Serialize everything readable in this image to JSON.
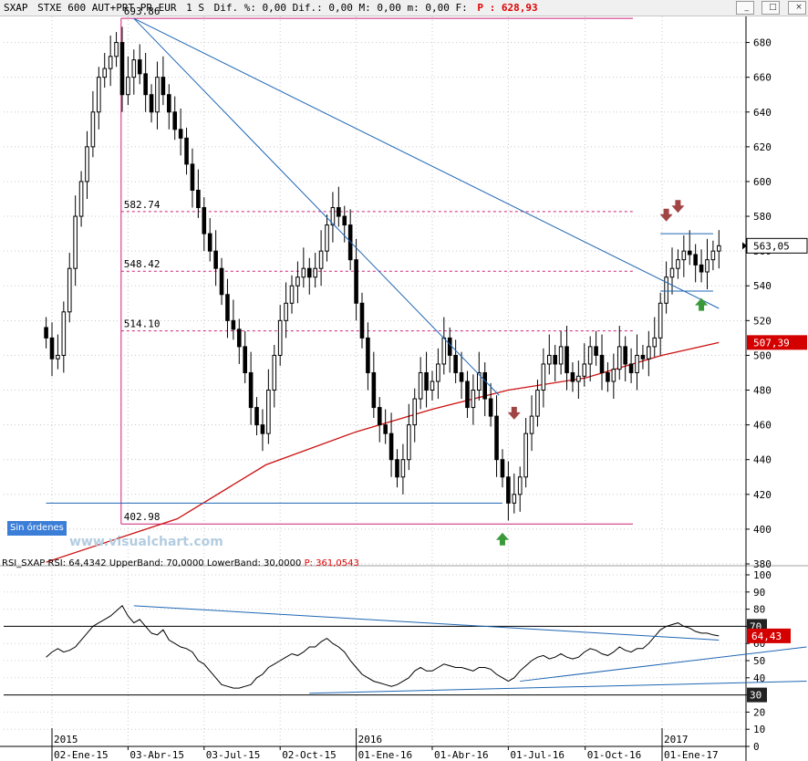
{
  "header": {
    "symbol": "SXAP",
    "name": "STXE 600 AUT+PRT PR.EUR",
    "period": "1 S",
    "stats": "Dif. %: 0,00 Dif.: 0,00 M: 0,00 m: 0,00 F:",
    "price": "P : 628,93"
  },
  "window_buttons": [
    "_",
    "□",
    "×"
  ],
  "sin_ordenes": "Sin órdenes",
  "watermark": "www.visualchart.com",
  "rsi_header": {
    "text": "RSI_SXAP  RSI: 64,4342  UpperBand: 70,0000  LowerBand: 30,0000",
    "p": "P: 361,0543"
  },
  "colors": {
    "candle": "#000000",
    "trendline": "#1f66b4",
    "fib": "#cc2277",
    "ma": "#cc1111",
    "down_arrow": "#a04444",
    "up_arrow": "#3a9a3a"
  },
  "chart_data": [
    {
      "type": "candlestick",
      "panel": "price",
      "period": "weekly",
      "y_axis_side": "right",
      "ylim": [
        380,
        695
      ],
      "yticks": [
        380,
        400,
        420,
        440,
        460,
        480,
        500,
        520,
        540,
        560,
        580,
        600,
        620,
        640,
        660,
        680
      ],
      "last_price_label": "563,05",
      "ma_label": "507,39",
      "fib_levels": [
        {
          "label": "693.86",
          "value": 693.86
        },
        {
          "label": "582.74",
          "value": 582.74
        },
        {
          "label": "548.42",
          "value": 548.42
        },
        {
          "label": "514.10",
          "value": 514.1
        },
        {
          "label": "402.98",
          "value": 402.98
        }
      ],
      "anchor_points": [
        {
          "name": "peak",
          "date": "2015-04-10",
          "value": 693.86
        },
        {
          "name": "trough",
          "date": "2016-06-24",
          "value": 402.98
        }
      ],
      "trendlines": [
        {
          "from": {
            "date": "2015-04-10",
            "value": 693.86
          },
          "to": {
            "date": "2017-03-10",
            "value": 527
          }
        },
        {
          "from": {
            "date": "2015-04-10",
            "value": 693.86
          },
          "to": {
            "date": "2016-06-20",
            "value": 477
          }
        }
      ],
      "horizontal_lines": [
        {
          "value": 415,
          "from": "2014-12-26",
          "to": "2016-06-24"
        },
        {
          "value": 570,
          "from": "2016-12-30",
          "to": "2017-03-03"
        },
        {
          "value": 537,
          "from": "2016-12-30",
          "to": "2017-03-03"
        }
      ],
      "markers": [
        {
          "type": "up",
          "date": "2016-06-24",
          "value": 398
        },
        {
          "type": "down",
          "date": "2016-07-08",
          "value": 463
        },
        {
          "type": "down",
          "date": "2017-01-06",
          "value": 577
        },
        {
          "type": "down",
          "date": "2017-01-20",
          "value": 582
        },
        {
          "type": "up",
          "date": "2017-02-17",
          "value": 533
        }
      ],
      "ma_path": [
        {
          "date": "2014-12-26",
          "value": 381
        },
        {
          "date": "2015-06-01",
          "value": 406
        },
        {
          "date": "2015-09-15",
          "value": 437
        },
        {
          "date": "2016-01-01",
          "value": 456
        },
        {
          "date": "2016-04-01",
          "value": 469
        },
        {
          "date": "2016-07-01",
          "value": 480
        },
        {
          "date": "2016-10-01",
          "value": 487
        },
        {
          "date": "2017-01-01",
          "value": 500
        },
        {
          "date": "2017-03-10",
          "value": 507.39
        }
      ],
      "anchor_first": "2014-12-26",
      "closes": [
        510,
        498,
        500,
        525,
        550,
        580,
        600,
        620,
        640,
        660,
        665,
        672,
        680,
        650,
        660,
        670,
        662,
        650,
        640,
        660,
        650,
        640,
        630,
        625,
        610,
        595,
        585,
        570,
        560,
        550,
        535,
        520,
        515,
        505,
        490,
        470,
        460,
        455,
        480,
        500,
        520,
        530,
        540,
        545,
        550,
        545,
        550,
        560,
        575,
        585,
        580,
        575,
        555,
        530,
        510,
        490,
        470,
        460,
        455,
        440,
        430,
        440,
        460,
        475,
        490,
        480,
        485,
        495,
        510,
        500,
        490,
        485,
        470,
        480,
        490,
        475,
        465,
        440,
        430,
        415,
        420,
        430,
        455,
        465,
        480,
        495,
        500,
        495,
        505,
        490,
        485,
        488,
        495,
        505,
        500,
        490,
        485,
        492,
        505,
        495,
        490,
        500,
        498,
        505,
        510,
        530,
        545,
        550,
        555,
        560,
        558,
        552,
        548,
        555,
        560,
        563.05
      ],
      "x_tick_labels": [
        "02-Ene-15",
        "03-Abr-15",
        "03-Jul-15",
        "02-Oct-15",
        "01-Ene-16",
        "01-Abr-16",
        "01-Jul-16",
        "01-Oct-16",
        "01-Ene-17"
      ],
      "x_tick_dates": [
        "2015-01-02",
        "2015-04-03",
        "2015-07-03",
        "2015-10-02",
        "2016-01-01",
        "2016-04-01",
        "2016-07-01",
        "2016-10-01",
        "2017-01-01"
      ],
      "year_labels": [
        "2015",
        "2016",
        "2017"
      ],
      "year_dates": [
        "2015-01-02",
        "2016-01-01",
        "2017-01-01"
      ]
    },
    {
      "type": "line",
      "panel": "rsi",
      "series_label": "RSI",
      "ylim": [
        0,
        100
      ],
      "yticks": [
        0,
        10,
        20,
        30,
        40,
        50,
        60,
        70,
        80,
        90,
        100
      ],
      "upper_band": 70,
      "lower_band": 30,
      "band_labels": [
        "70",
        "30"
      ],
      "last_label": "64,43",
      "values": [
        52,
        55,
        57,
        55,
        56,
        58,
        62,
        66,
        70,
        72,
        74,
        76,
        79,
        82,
        76,
        72,
        74,
        70,
        66,
        65,
        68,
        62,
        60,
        58,
        57,
        55,
        50,
        48,
        44,
        40,
        36,
        35,
        34,
        34,
        35,
        36,
        40,
        42,
        46,
        48,
        50,
        52,
        54,
        53,
        55,
        58,
        58,
        61,
        63,
        60,
        58,
        55,
        50,
        46,
        42,
        40,
        38,
        37,
        36,
        35,
        36,
        38,
        40,
        44,
        46,
        44,
        44,
        46,
        48,
        47,
        46,
        46,
        45,
        44,
        46,
        46,
        45,
        42,
        40,
        38,
        40,
        44,
        47,
        50,
        52,
        53,
        51,
        52,
        54,
        52,
        51,
        52,
        55,
        57,
        56,
        54,
        53,
        55,
        58,
        56,
        55,
        57,
        57,
        60,
        64,
        68,
        70,
        71,
        72,
        70,
        69,
        67,
        66,
        66,
        65,
        64.43
      ],
      "trendlines": [
        {
          "from": {
            "i": 15,
            "value": 82
          },
          "to": {
            "i": 115,
            "value": 62
          }
        },
        {
          "from": {
            "i": 81,
            "value": 38
          },
          "to": {
            "i": 130,
            "value": 58
          }
        },
        {
          "from": {
            "i": 45,
            "value": 31
          },
          "to": {
            "i": 130,
            "value": 38
          }
        }
      ]
    }
  ]
}
